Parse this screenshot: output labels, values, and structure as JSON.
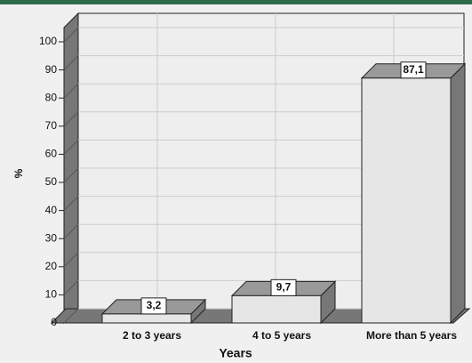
{
  "chart_data": {
    "type": "bar3d",
    "categories": [
      "2 to 3 years",
      "4 to 5 years",
      "More than 5 years"
    ],
    "values": [
      3.2,
      9.7,
      87.1
    ],
    "value_labels": [
      "3,2",
      "9,7",
      "87,1"
    ],
    "color": "#e6e6e6",
    "ylabel": "%",
    "xlabel": "Years",
    "ylim": [
      0,
      100
    ],
    "yticks": [
      0,
      10,
      20,
      30,
      40,
      50,
      60,
      70,
      80,
      90,
      100
    ],
    "grid": true
  }
}
